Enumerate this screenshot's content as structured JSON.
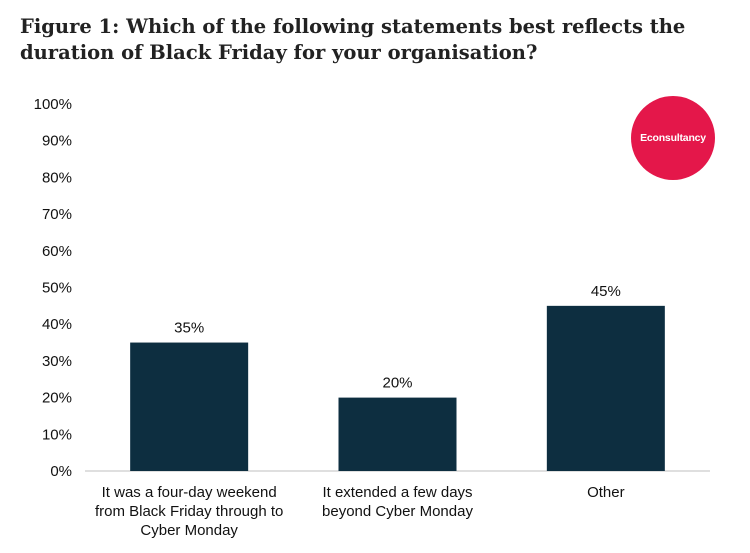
{
  "title": "Figure 1: Which of the following statements best reflects the duration of Black Friday for your organisation?",
  "logo": {
    "text": "Econsultancy",
    "color": "#e4174a"
  },
  "chart_data": {
    "type": "bar",
    "categories": [
      [
        "It was a four-day weekend",
        "from Black Friday through to",
        "Cyber Monday"
      ],
      [
        "It extended a few days",
        "beyond Cyber Monday"
      ],
      [
        "Other"
      ]
    ],
    "values": [
      35,
      20,
      45
    ],
    "data_labels": [
      "35%",
      "20%",
      "45%"
    ],
    "yticks": [
      "0%",
      "10%",
      "20%",
      "30%",
      "40%",
      "50%",
      "60%",
      "70%",
      "80%",
      "90%",
      "100%"
    ],
    "ylim": [
      0,
      100
    ],
    "bar_color": "#0d2e40",
    "grid": false
  }
}
